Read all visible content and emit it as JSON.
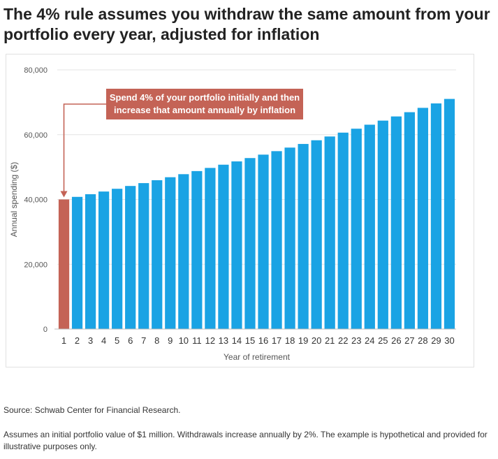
{
  "headline": "The 4% rule assumes you withdraw the same amount from your portfolio every year, adjusted for inflation",
  "colors": {
    "first_bar": "#c46356",
    "bars": "#1aa3e4",
    "callout": "#c46356",
    "grid": "#e4e4e4"
  },
  "chart_data": {
    "type": "bar",
    "xlabel": "Year of retirement",
    "ylabel": "Annual spending ($)",
    "ylim": [
      0,
      80000
    ],
    "yticks": [
      0,
      20000,
      40000,
      60000,
      80000
    ],
    "ytick_labels": [
      "0",
      "20,000",
      "40,000",
      "60,000",
      "80,000"
    ],
    "grid": true,
    "categories": [
      "1",
      "2",
      "3",
      "4",
      "5",
      "6",
      "7",
      "8",
      "9",
      "10",
      "11",
      "12",
      "13",
      "14",
      "15",
      "16",
      "17",
      "18",
      "19",
      "20",
      "21",
      "22",
      "23",
      "24",
      "25",
      "26",
      "27",
      "28",
      "29",
      "30"
    ],
    "values": [
      40000,
      40800,
      41616,
      42448,
      43297,
      44163,
      45046,
      45947,
      46866,
      47804,
      48760,
      49735,
      50730,
      51744,
      52779,
      53835,
      54911,
      56010,
      57130,
      58272,
      59438,
      60627,
      61839,
      63076,
      64337,
      65624,
      66937,
      68275,
      69641,
      71034
    ],
    "highlight_index": 0,
    "annotation": {
      "text_line1": "Spend 4% of your portfolio initially and then",
      "text_line2": "increase that amount annually by inflation",
      "points_to": "1"
    }
  },
  "source": "Source: Schwab Center for Financial Research.",
  "note": "Assumes an initial portfolio value of $1 million. Withdrawals increase annually by 2%. The example is hypothetical and provided for illustrative purposes only."
}
